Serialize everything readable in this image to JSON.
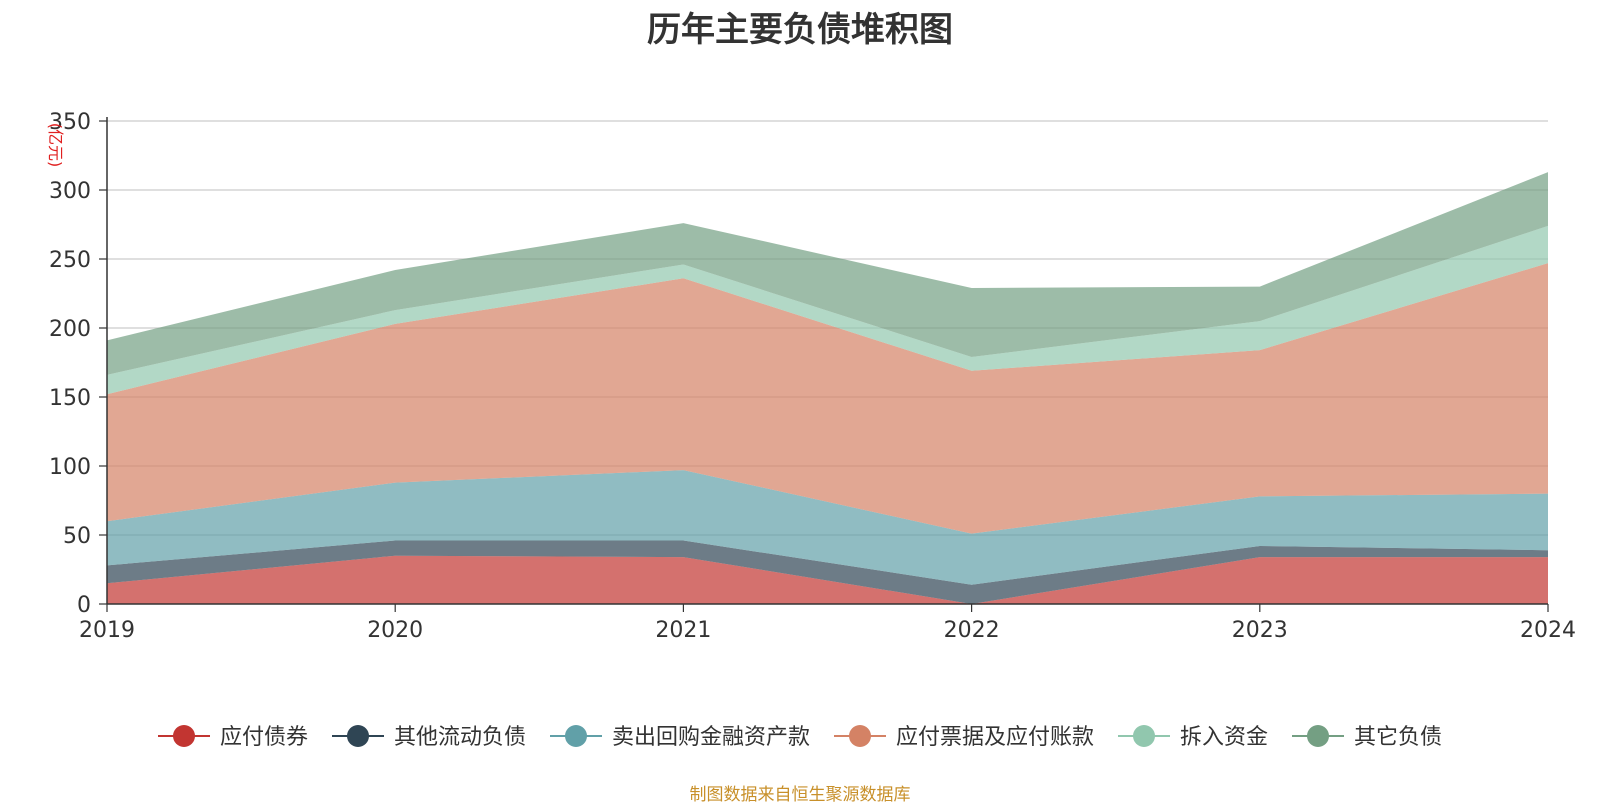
{
  "chart_data": {
    "type": "area",
    "title": "历年主要负债堆积图",
    "ylabel": "(亿元)",
    "xlabel": "",
    "categories": [
      "2019",
      "2020",
      "2021",
      "2022",
      "2023",
      "2024"
    ],
    "ylim": [
      0,
      350
    ],
    "yticks": [
      0,
      50,
      100,
      150,
      200,
      250,
      300,
      350
    ],
    "stacked": true,
    "grid": true,
    "legend_position": "bottom",
    "series": [
      {
        "name": "应付债券",
        "color": "#c23531",
        "values": [
          15,
          35,
          34,
          0,
          34,
          34
        ]
      },
      {
        "name": "其他流动负债",
        "color": "#2f4554",
        "values": [
          13,
          11,
          12,
          14,
          8,
          5
        ]
      },
      {
        "name": "卖出回购金融资产款",
        "color": "#61a0a8",
        "values": [
          32,
          42,
          51,
          37,
          36,
          41
        ]
      },
      {
        "name": "应付票据及应付账款",
        "color": "#d48265",
        "values": [
          92,
          115,
          139,
          118,
          106,
          167
        ]
      },
      {
        "name": "拆入资金",
        "color": "#91c7ae",
        "values": [
          14,
          10,
          10,
          10,
          21,
          27
        ]
      },
      {
        "name": "其它负债",
        "color": "#749f83",
        "values": [
          25,
          29,
          30,
          50,
          25,
          39
        ]
      }
    ]
  },
  "footer": {
    "source": "制图数据来自恒生聚源数据库"
  }
}
